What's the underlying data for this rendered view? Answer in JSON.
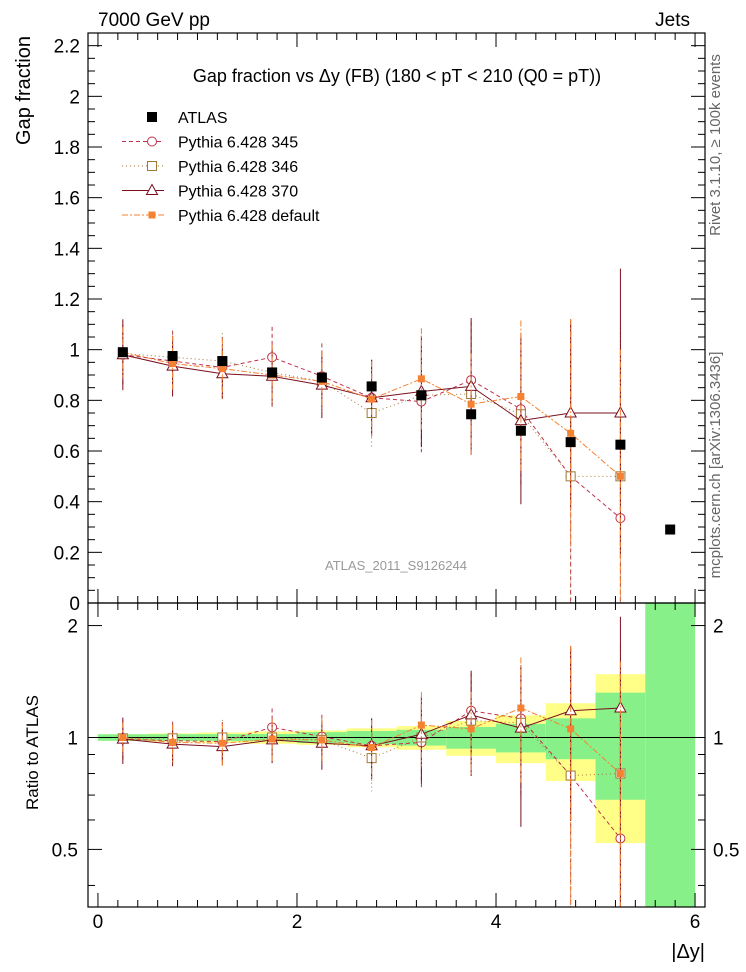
{
  "header": {
    "left": "7000 GeV pp",
    "right": "Jets"
  },
  "side_labels": {
    "rivet": "Rivet 3.1.10, ≥ 100k events",
    "mcplots": "mcplots.cern.ch [arXiv:1306.3436]"
  },
  "colors": {
    "atlas": "#000000",
    "p345": "#c0304b",
    "p346": "#a07838",
    "p370": "#7a0f1e",
    "pdef": "#f58232",
    "band_inner": "#88f088",
    "band_outer": "#ffff88"
  },
  "chart_data": {
    "type": "scatter",
    "title": "Gap fraction vs  Δy (FB) (180 < pT < 210 (Q0 = pT))",
    "watermark": "ATLAS_2011_S9126244",
    "xlabel": "|Δy|",
    "ylabel": "Gap fraction",
    "ratio_ylabel": "Ratio to ATLAS",
    "xlim": [
      -0.1,
      6.1
    ],
    "ylim": [
      0,
      2.25
    ],
    "ratio_ylim": [
      0.35,
      2.3
    ],
    "x_ticks": [
      "0",
      "2",
      "4",
      "6"
    ],
    "y_ticks": [
      "0",
      "0.2",
      "0.4",
      "0.6",
      "0.8",
      "1",
      "1.2",
      "1.4",
      "1.6",
      "1.8",
      "2",
      "2.2"
    ],
    "ratio_ticks": [
      "0.5",
      "1",
      "2"
    ],
    "legend_position": "top-left",
    "x": [
      0.25,
      0.75,
      1.25,
      1.75,
      2.25,
      2.75,
      3.25,
      3.75,
      4.25,
      4.75,
      5.25,
      5.75
    ],
    "xerr": 0.25,
    "data": {
      "name": "ATLAS",
      "values": [
        0.99,
        0.975,
        0.955,
        0.91,
        0.89,
        0.855,
        0.82,
        0.745,
        0.68,
        0.635,
        0.625,
        0.29
      ],
      "band_inner": [
        0.02,
        0.02,
        0.02,
        0.02,
        0.03,
        0.035,
        0.04,
        0.05,
        0.06,
        0.08,
        0.2,
        0.65
      ],
      "band_outer": [
        0.02,
        0.025,
        0.03,
        0.035,
        0.04,
        0.05,
        0.06,
        0.08,
        0.1,
        0.15,
        0.3,
        0.9
      ]
    },
    "series": [
      {
        "name": "Pythia 6.428 345",
        "style": "circle",
        "dash": "4,3",
        "values": [
          0.98,
          0.955,
          0.93,
          0.97,
          0.895,
          0.81,
          0.795,
          0.88,
          0.765,
          0.5,
          0.335
        ],
        "err": [
          0.12,
          0.12,
          0.12,
          0.12,
          0.13,
          0.15,
          0.2,
          0.23,
          0.3,
          0.6,
          0.6
        ]
      },
      {
        "name": "Pythia 6.428 346",
        "style": "square-open",
        "dash": "1,3",
        "values": [
          0.985,
          0.97,
          0.955,
          0.91,
          0.875,
          0.75,
          0.82,
          0.825,
          0.745,
          0.5,
          0.5
        ],
        "err": [
          0.1,
          0.1,
          0.11,
          0.11,
          0.12,
          0.14,
          0.18,
          0.22,
          0.28,
          0.5,
          0.6
        ]
      },
      {
        "name": "Pythia 6.428 370",
        "style": "triangle",
        "dash": "",
        "values": [
          0.98,
          0.935,
          0.905,
          0.895,
          0.86,
          0.81,
          0.835,
          0.855,
          0.72,
          0.75,
          0.75
        ],
        "err": [
          0.14,
          0.12,
          0.1,
          0.12,
          0.13,
          0.15,
          0.22,
          0.27,
          0.33,
          0.37,
          0.57
        ]
      },
      {
        "name": "Pythia 6.428 default",
        "style": "square-filled",
        "dash": "6,2,2,2",
        "values": [
          0.99,
          0.945,
          0.925,
          0.9,
          0.875,
          0.805,
          0.885,
          0.785,
          0.815,
          0.67,
          0.5
        ],
        "err": [
          0.1,
          0.11,
          0.12,
          0.12,
          0.12,
          0.15,
          0.2,
          0.2,
          0.3,
          0.45,
          0.5
        ]
      }
    ],
    "ratio_series": [
      [
        0.99,
        0.98,
        0.975,
        1.065,
        1.005,
        0.95,
        0.97,
        1.18,
        1.125,
        0.79,
        0.535
      ],
      [
        0.995,
        0.995,
        1.0,
        1.0,
        0.985,
        0.88,
        1.0,
        1.11,
        1.095,
        0.79,
        0.8
      ],
      [
        0.99,
        0.96,
        0.945,
        0.985,
        0.965,
        0.95,
        1.02,
        1.15,
        1.06,
        1.18,
        1.2
      ],
      [
        1.0,
        0.97,
        0.965,
        0.99,
        0.985,
        0.94,
        1.08,
        1.055,
        1.2,
        1.055,
        0.8
      ]
    ]
  }
}
